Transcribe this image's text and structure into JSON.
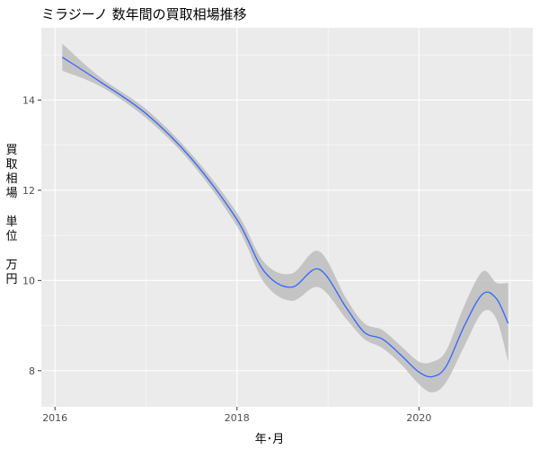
{
  "chart_data": {
    "type": "line",
    "title": "ミラジーノ 数年間の買取相場推移",
    "xlabel": "年･月",
    "ylabel": "買\n取\n相\n場\n\n単\n位\n\n万\n円",
    "xlim": [
      2015.85,
      2021.25
    ],
    "ylim": [
      7.2,
      15.6
    ],
    "x_ticks": [
      2016,
      2018,
      2020
    ],
    "y_ticks": [
      8,
      10,
      12,
      14
    ],
    "grid": true,
    "legend": "none",
    "colors": {
      "line": "#3366ff",
      "ribbon": "#bdbdbd",
      "panel": "#ebebeb",
      "grid": "#ffffff"
    },
    "series": [
      {
        "x": [
          2016.08,
          2016.5,
          2017.0,
          2017.5,
          2018.0,
          2018.3,
          2018.6,
          2018.9,
          2019.2,
          2019.4,
          2019.6,
          2019.8,
          2020.0,
          2020.15,
          2020.3,
          2020.5,
          2020.7,
          2020.85,
          2020.98
        ],
        "y": [
          14.95,
          14.4,
          13.7,
          12.7,
          11.35,
          10.2,
          9.85,
          10.25,
          9.4,
          8.85,
          8.7,
          8.35,
          7.97,
          7.87,
          8.1,
          9.0,
          9.7,
          9.6,
          9.05
        ],
        "lower": [
          14.65,
          14.3,
          13.6,
          12.6,
          11.2,
          9.95,
          9.55,
          9.85,
          9.15,
          8.7,
          8.5,
          8.15,
          7.7,
          7.52,
          7.75,
          8.55,
          9.3,
          9.15,
          8.2
        ],
        "upper": [
          15.25,
          14.5,
          13.8,
          12.8,
          11.5,
          10.4,
          10.15,
          10.65,
          9.6,
          9.05,
          8.9,
          8.55,
          8.2,
          8.2,
          8.45,
          9.45,
          10.2,
          9.95,
          9.95
        ]
      }
    ]
  }
}
